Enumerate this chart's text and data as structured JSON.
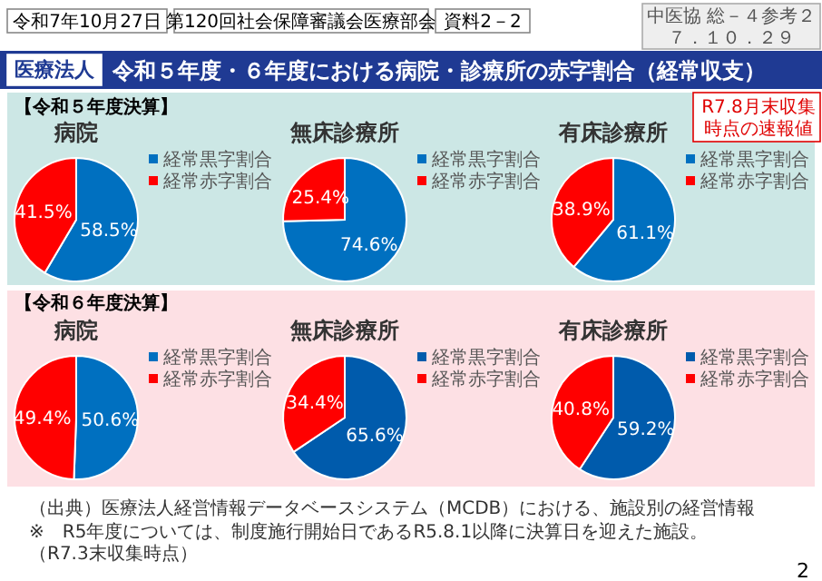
{
  "chart_data": [
    {
      "type": "other",
      "title": "令和５年度・６年度における病院・診療所の赤字割合（経常収支）",
      "annotations": [
        "医療法人",
        "令和7年10月27日",
        "第120回社会保障審議会医療部会",
        "資料2－2",
        "中医協 総－４参考２",
        "７．１０．２９",
        "R7.8月末収集時点の速報値",
        "【令和５年度決算】",
        "【令和６年度決算】",
        "（出典）医療法人経営情報データベースシステム（MCDB）における、施設別の経営情報",
        "※　R5年度については、制度施行開始日であるR5.8.1以降に決算日を迎えた施設。（R7.3末収集時点）",
        "2"
      ]
    },
    {
      "type": "pie",
      "title": "病院",
      "categories": [
        "経常黒字割合",
        "経常赤字割合"
      ],
      "values": [
        58.5,
        41.5
      ],
      "value_labels": [
        "58.5%",
        "41.5%"
      ],
      "colors": [
        "#0070c0",
        "#ff0000"
      ],
      "legend": "top right"
    },
    {
      "type": "pie",
      "title": "無床診療所",
      "categories": [
        "経常黒字割合",
        "経常赤字割合"
      ],
      "values": [
        74.6,
        25.4
      ],
      "value_labels": [
        "74.6%",
        "25.4%"
      ],
      "colors": [
        "#0070c0",
        "#ff0000"
      ],
      "legend": "top right"
    },
    {
      "type": "pie",
      "title": "有床診療所",
      "categories": [
        "経常黒字割合",
        "経常赤字割合"
      ],
      "values": [
        61.1,
        38.9
      ],
      "value_labels": [
        "61.1%",
        "38.9%"
      ],
      "colors": [
        "#0070c0",
        "#ff0000"
      ],
      "legend": "top right"
    },
    {
      "type": "pie",
      "title": "病院",
      "categories": [
        "経常黒字割合",
        "経常赤字割合"
      ],
      "values": [
        50.6,
        49.4
      ],
      "value_labels": [
        "50.6%",
        "49.4%"
      ],
      "colors": [
        "#0070c0",
        "#ff0000"
      ],
      "legend": "top right"
    },
    {
      "type": "pie",
      "title": "無床診療所",
      "categories": [
        "経常黒字割合",
        "経常赤字割合"
      ],
      "values": [
        65.6,
        34.4
      ],
      "value_labels": [
        "65.6%",
        "34.4%"
      ],
      "colors": [
        "#005bac",
        "#ff0000"
      ],
      "legend": "top right"
    },
    {
      "type": "pie",
      "title": "有床診療所",
      "categories": [
        "経常黒字割合",
        "経常赤字割合"
      ],
      "values": [
        59.2,
        40.8
      ],
      "value_labels": [
        "59.2%",
        "40.8%"
      ],
      "colors": [
        "#005bac",
        "#ff0000"
      ],
      "legend": "top right"
    }
  ]
}
